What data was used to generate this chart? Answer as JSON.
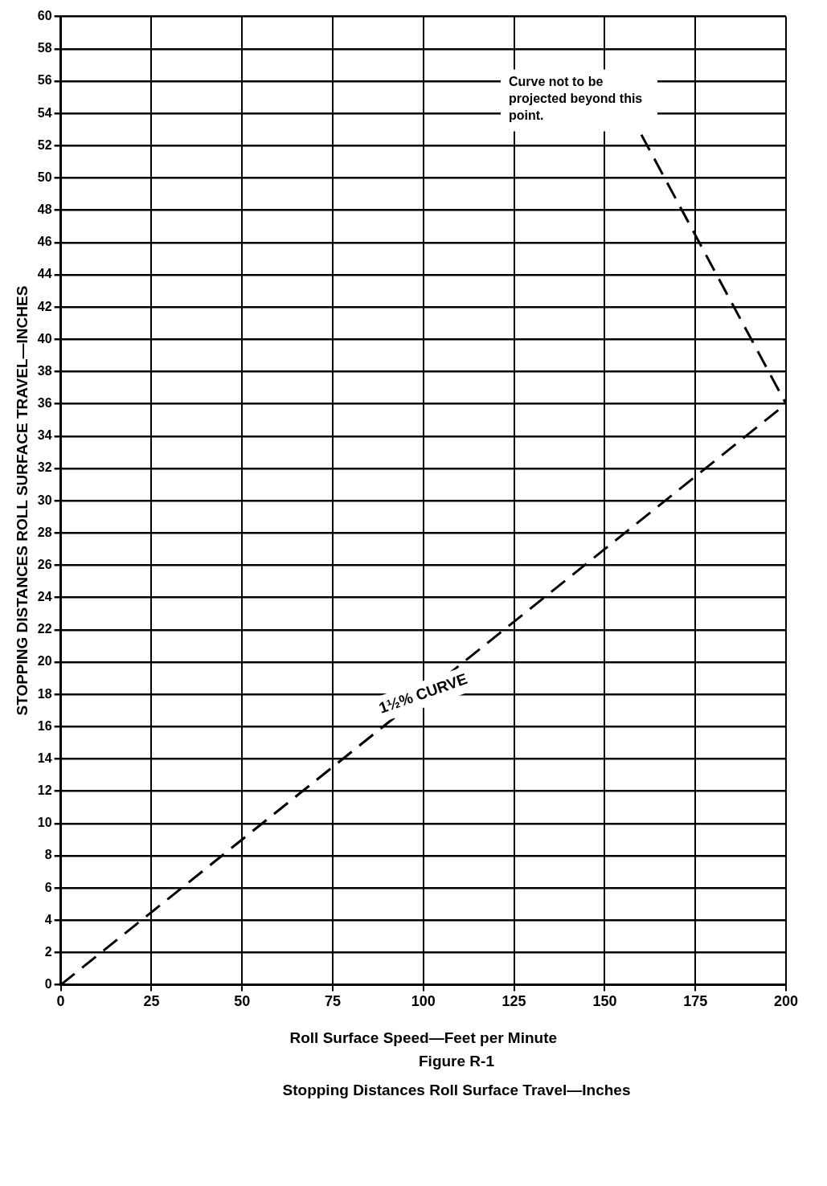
{
  "chart_data": {
    "type": "line",
    "title": "Figure R-1",
    "subtitle": "Stopping Distances Roll Surface Travel—Inches",
    "xlabel": "Roll Surface Speed—Feet per Minute",
    "ylabel": "STOPPING DISTANCES ROLL SURFACE TRAVEL—INCHES",
    "x": [
      0,
      200
    ],
    "series": [
      {
        "color": "#000000",
        "values": [
          0,
          36
        ]
      }
    ],
    "line_style": "dashed",
    "marker": "none",
    "grid": true,
    "legend": false,
    "xlim": [
      0,
      200
    ],
    "xticks": [
      0,
      25,
      50,
      75,
      100,
      125,
      150,
      175,
      200
    ],
    "ylim": [
      0,
      60
    ],
    "yticks": [
      0,
      2,
      4,
      6,
      8,
      10,
      12,
      14,
      16,
      18,
      20,
      22,
      24,
      26,
      28,
      30,
      32,
      34,
      36,
      38,
      40,
      42,
      44,
      46,
      48,
      50,
      52,
      54,
      56,
      58,
      60
    ],
    "annotations": [
      {
        "text": "1½% CURVE",
        "x": 100,
        "y": 18
      },
      {
        "text": "Curve not to be projected beyond this point.",
        "x": 200,
        "y": 36
      }
    ]
  }
}
